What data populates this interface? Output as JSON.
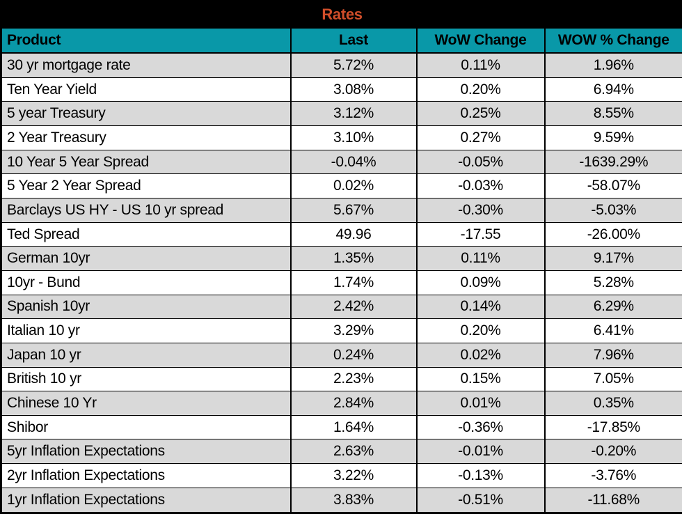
{
  "table": {
    "title": "Rates",
    "columns": [
      "Product",
      "Last",
      "WoW Change",
      "WOW % Change"
    ],
    "rows": [
      {
        "product": "30 yr mortgage rate",
        "last": "5.72%",
        "wow_change": "0.11%",
        "wow_pct_change": "1.96%"
      },
      {
        "product": "Ten Year Yield",
        "last": "3.08%",
        "wow_change": "0.20%",
        "wow_pct_change": "6.94%"
      },
      {
        "product": "5 year Treasury",
        "last": "3.12%",
        "wow_change": "0.25%",
        "wow_pct_change": "8.55%"
      },
      {
        "product": "2 Year Treasury",
        "last": "3.10%",
        "wow_change": "0.27%",
        "wow_pct_change": "9.59%"
      },
      {
        "product": "10 Year 5 Year Spread",
        "last": "-0.04%",
        "wow_change": "-0.05%",
        "wow_pct_change": "-1639.29%"
      },
      {
        "product": "5 Year 2 Year Spread",
        "last": "0.02%",
        "wow_change": "-0.03%",
        "wow_pct_change": "-58.07%"
      },
      {
        "product": "Barclays US HY - US 10 yr spread",
        "last": "5.67%",
        "wow_change": "-0.30%",
        "wow_pct_change": "-5.03%"
      },
      {
        "product": "Ted Spread",
        "last": "49.96",
        "wow_change": "-17.55",
        "wow_pct_change": "-26.00%"
      },
      {
        "product": "German 10yr",
        "last": "1.35%",
        "wow_change": "0.11%",
        "wow_pct_change": "9.17%"
      },
      {
        "product": "10yr - Bund",
        "last": "1.74%",
        "wow_change": "0.09%",
        "wow_pct_change": "5.28%"
      },
      {
        "product": "Spanish 10yr",
        "last": "2.42%",
        "wow_change": "0.14%",
        "wow_pct_change": "6.29%"
      },
      {
        "product": "Italian 10 yr",
        "last": "3.29%",
        "wow_change": "0.20%",
        "wow_pct_change": "6.41%"
      },
      {
        "product": "Japan 10 yr",
        "last": "0.24%",
        "wow_change": "0.02%",
        "wow_pct_change": "7.96%"
      },
      {
        "product": "British 10 yr",
        "last": "2.23%",
        "wow_change": "0.15%",
        "wow_pct_change": "7.05%"
      },
      {
        "product": "Chinese 10 Yr",
        "last": "2.84%",
        "wow_change": "0.01%",
        "wow_pct_change": "0.35%"
      },
      {
        "product": "Shibor",
        "last": "1.64%",
        "wow_change": "-0.36%",
        "wow_pct_change": "-17.85%"
      },
      {
        "product": "5yr Inflation Expectations",
        "last": "2.63%",
        "wow_change": "-0.01%",
        "wow_pct_change": "-0.20%"
      },
      {
        "product": "2yr Inflation Expectations",
        "last": "3.22%",
        "wow_change": "-0.13%",
        "wow_pct_change": "-3.76%"
      },
      {
        "product": "1yr Inflation Expectations",
        "last": "3.83%",
        "wow_change": "-0.51%",
        "wow_pct_change": "-11.68%"
      }
    ]
  },
  "colors": {
    "title_bg": "#000000",
    "title_text": "#d04e2a",
    "header_bg": "#0998a8",
    "row_shaded": "#d9d9d9",
    "row_plain": "#ffffff",
    "grid": "#000000",
    "text": "#000000"
  }
}
